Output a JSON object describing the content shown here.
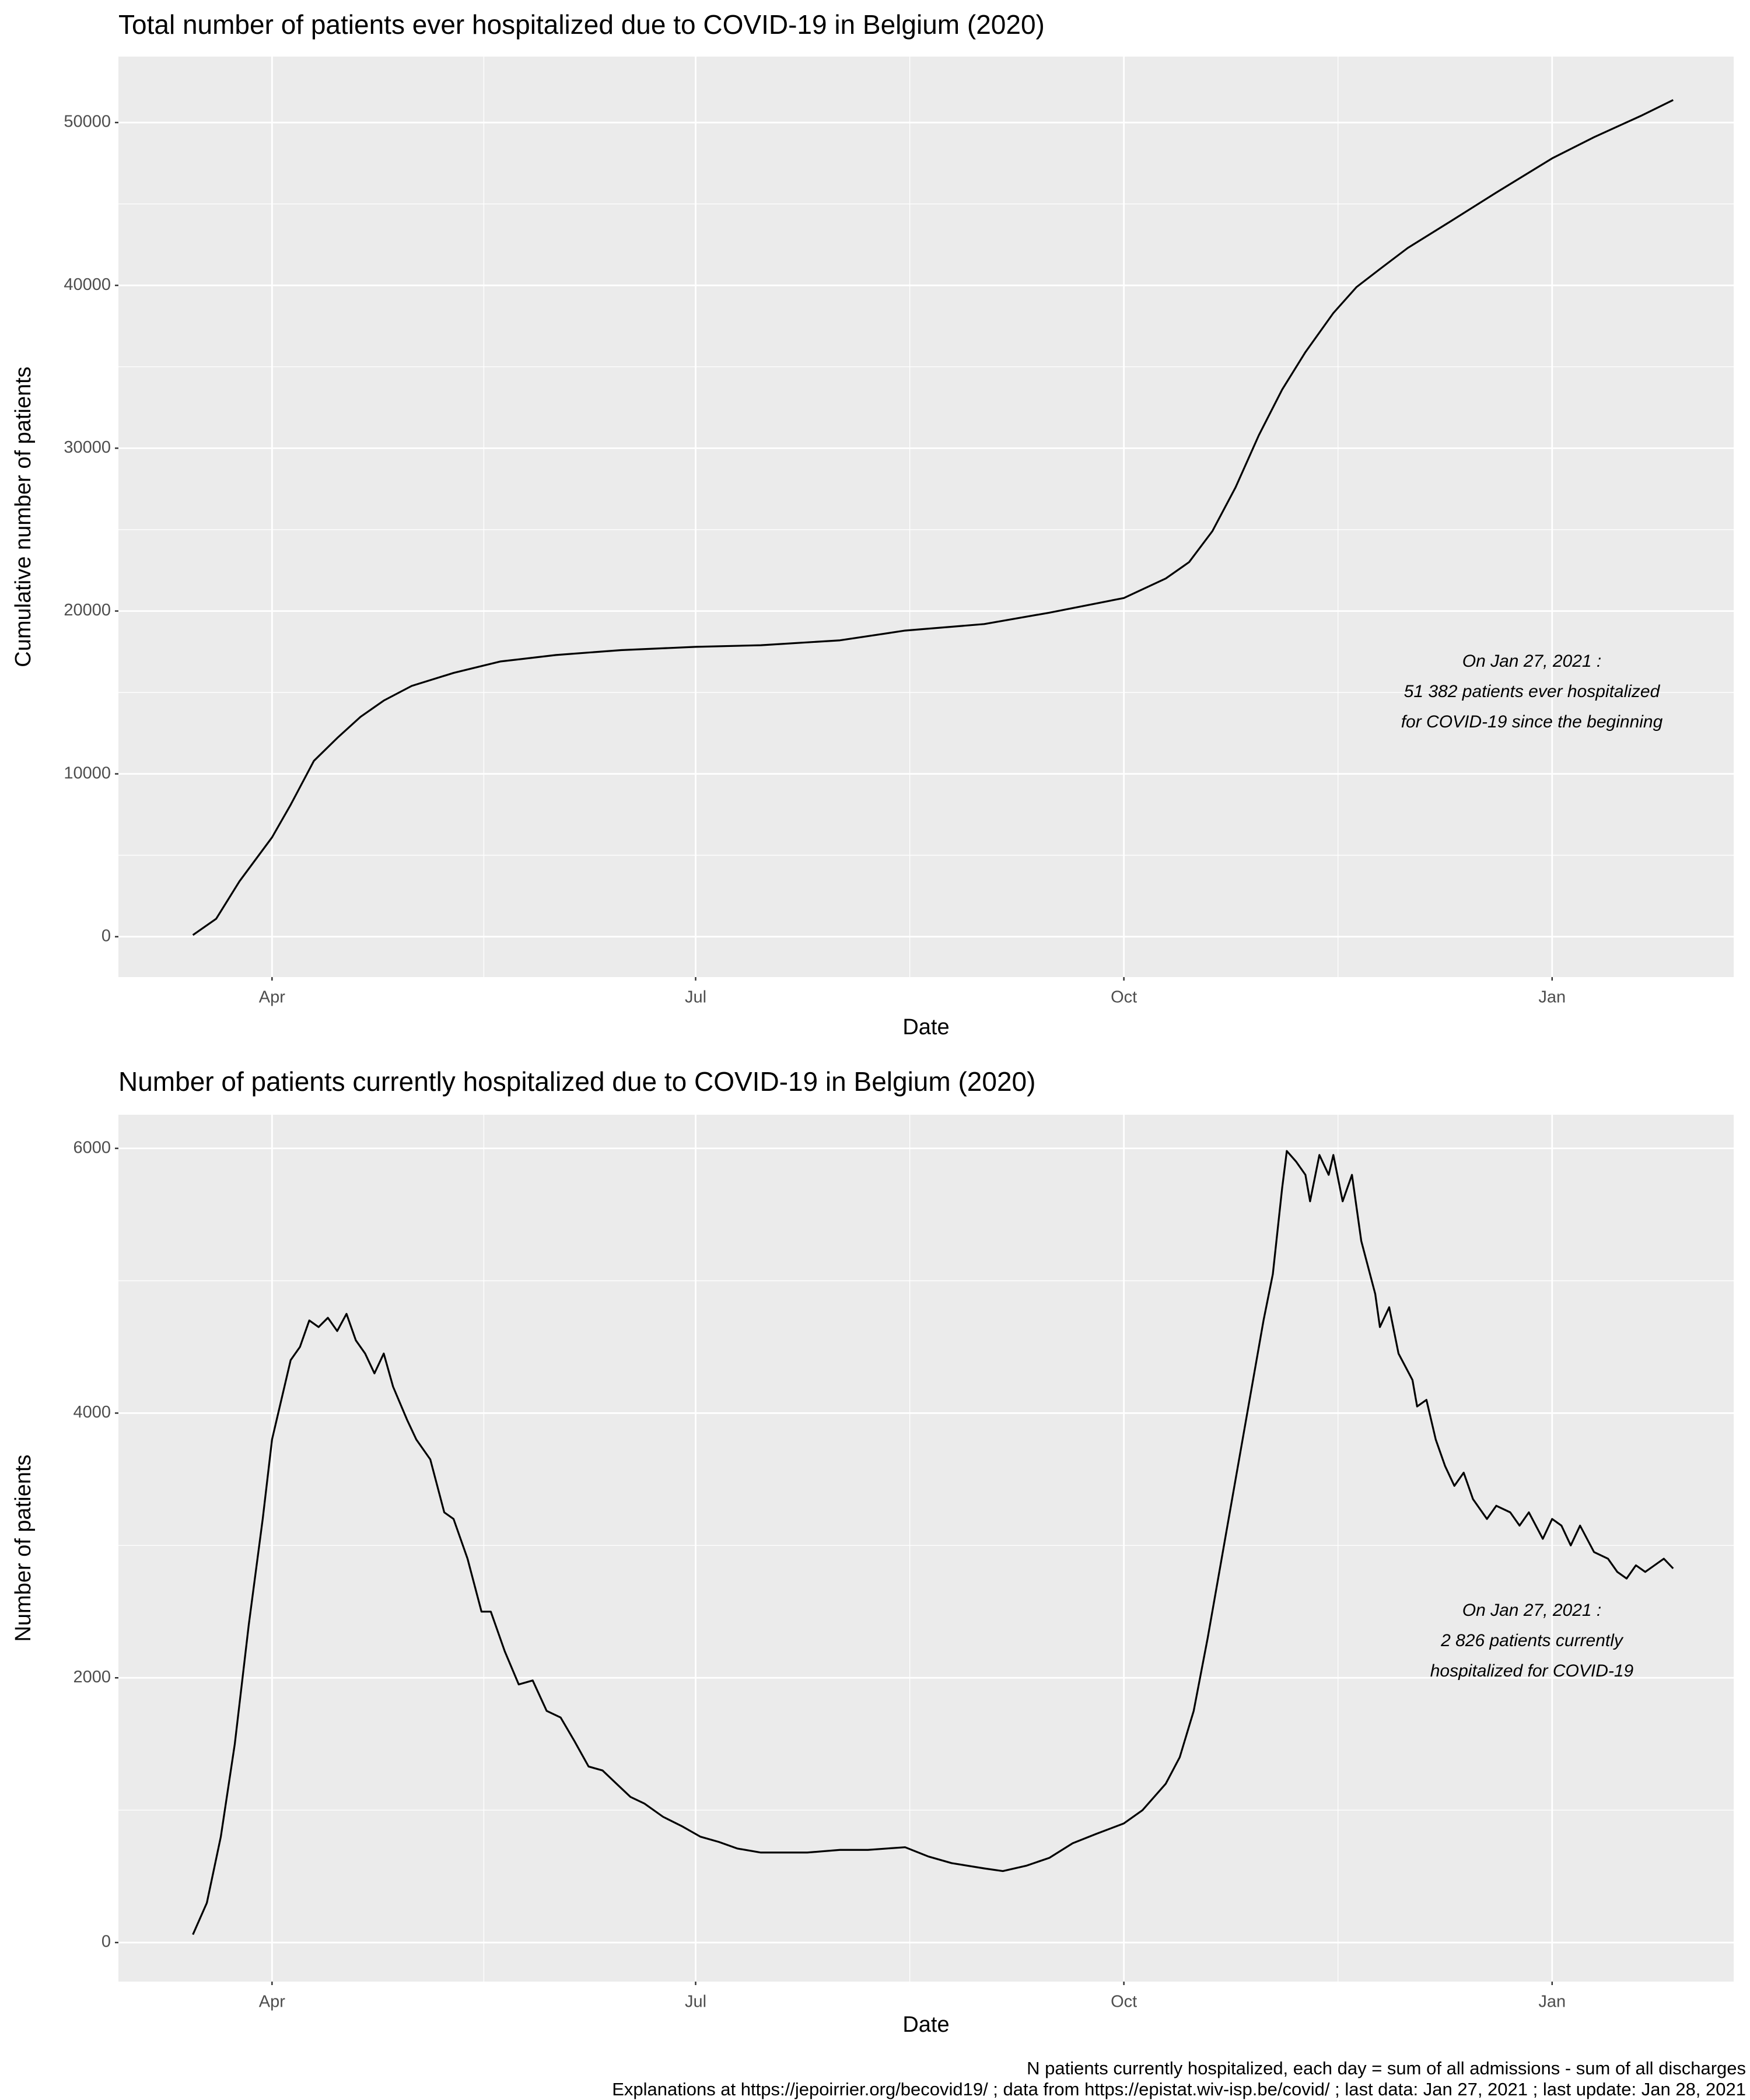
{
  "chart_data": [
    {
      "type": "line",
      "title": "Total number of patients ever hospitalized due to COVID-19 in Belgium (2020)",
      "x_label": "Date",
      "y_label": "Cumulative number of patients",
      "x": [
        "2020-03-15",
        "2020-03-20",
        "2020-03-25",
        "2020-04-01",
        "2020-04-05",
        "2020-04-10",
        "2020-04-15",
        "2020-04-20",
        "2020-04-25",
        "2020-05-01",
        "2020-05-10",
        "2020-05-20",
        "2020-06-01",
        "2020-06-15",
        "2020-07-01",
        "2020-07-15",
        "2020-08-01",
        "2020-08-15",
        "2020-09-01",
        "2020-09-15",
        "2020-10-01",
        "2020-10-10",
        "2020-10-15",
        "2020-10-20",
        "2020-10-25",
        "2020-10-30",
        "2020-11-04",
        "2020-11-09",
        "2020-11-15",
        "2020-11-20",
        "2020-11-25",
        "2020-12-01",
        "2020-12-10",
        "2020-12-20",
        "2021-01-01",
        "2021-01-10",
        "2021-01-20",
        "2021-01-27"
      ],
      "values": [
        100,
        1100,
        3400,
        6100,
        8100,
        10800,
        12200,
        13500,
        14500,
        15400,
        16200,
        16900,
        17300,
        17600,
        17800,
        17900,
        18200,
        18800,
        19200,
        19900,
        20800,
        22000,
        23000,
        24900,
        27600,
        30800,
        33600,
        35900,
        38300,
        39900,
        41000,
        42300,
        43900,
        45700,
        47800,
        49100,
        50400,
        51382
      ],
      "color": "#000000",
      "xlim": [
        "2020-02-28",
        "2021-02-09"
      ],
      "xticks": [
        {
          "value": "2020-04-01",
          "label": "Apr"
        },
        {
          "value": "2020-07-01",
          "label": "Jul"
        },
        {
          "value": "2020-10-01",
          "label": "Oct"
        },
        {
          "value": "2021-01-01",
          "label": "Jan"
        }
      ],
      "ylim": [
        -2480,
        54050
      ],
      "yticks": [
        0,
        10000,
        20000,
        30000,
        40000,
        50000
      ],
      "grid": true,
      "annotation": [
        "On Jan 27, 2021 :",
        "51 382 patients ever hospitalized",
        "for COVID-19 since the beginning"
      ]
    },
    {
      "type": "line",
      "title": "Number of patients currently hospitalized due to COVID-19 in Belgium (2020)",
      "x_label": "Date",
      "y_label": "Number of patients",
      "x": [
        "2020-03-15",
        "2020-03-18",
        "2020-03-21",
        "2020-03-24",
        "2020-03-27",
        "2020-03-30",
        "2020-04-01",
        "2020-04-03",
        "2020-04-05",
        "2020-04-07",
        "2020-04-09",
        "2020-04-11",
        "2020-04-13",
        "2020-04-15",
        "2020-04-17",
        "2020-04-19",
        "2020-04-21",
        "2020-04-23",
        "2020-04-25",
        "2020-04-27",
        "2020-04-30",
        "2020-05-02",
        "2020-05-05",
        "2020-05-08",
        "2020-05-10",
        "2020-05-13",
        "2020-05-16",
        "2020-05-18",
        "2020-05-21",
        "2020-05-24",
        "2020-05-27",
        "2020-05-30",
        "2020-06-02",
        "2020-06-05",
        "2020-06-08",
        "2020-06-11",
        "2020-06-14",
        "2020-06-17",
        "2020-06-20",
        "2020-06-24",
        "2020-06-28",
        "2020-07-02",
        "2020-07-06",
        "2020-07-10",
        "2020-07-15",
        "2020-07-20",
        "2020-07-25",
        "2020-08-01",
        "2020-08-07",
        "2020-08-15",
        "2020-08-20",
        "2020-08-25",
        "2020-09-01",
        "2020-09-05",
        "2020-09-10",
        "2020-09-15",
        "2020-09-20",
        "2020-09-25",
        "2020-10-01",
        "2020-10-05",
        "2020-10-10",
        "2020-10-13",
        "2020-10-16",
        "2020-10-19",
        "2020-10-22",
        "2020-10-25",
        "2020-10-28",
        "2020-10-31",
        "2020-11-02",
        "2020-11-04",
        "2020-11-05",
        "2020-11-07",
        "2020-11-09",
        "2020-11-10",
        "2020-11-12",
        "2020-11-14",
        "2020-11-15",
        "2020-11-17",
        "2020-11-19",
        "2020-11-21",
        "2020-11-24",
        "2020-11-25",
        "2020-11-27",
        "2020-11-29",
        "2020-12-02",
        "2020-12-03",
        "2020-12-05",
        "2020-12-07",
        "2020-12-09",
        "2020-12-11",
        "2020-12-13",
        "2020-12-15",
        "2020-12-18",
        "2020-12-20",
        "2020-12-23",
        "2020-12-25",
        "2020-12-27",
        "2020-12-30",
        "2021-01-01",
        "2021-01-03",
        "2021-01-05",
        "2021-01-07",
        "2021-01-10",
        "2021-01-13",
        "2021-01-15",
        "2021-01-17",
        "2021-01-19",
        "2021-01-21",
        "2021-01-23",
        "2021-01-25",
        "2021-01-27"
      ],
      "values": [
        60,
        300,
        800,
        1500,
        2400,
        3200,
        3800,
        4100,
        4400,
        4500,
        4700,
        4650,
        4720,
        4620,
        4750,
        4550,
        4450,
        4300,
        4450,
        4200,
        3950,
        3800,
        3650,
        3250,
        3200,
        2900,
        2500,
        2500,
        2200,
        1950,
        1980,
        1750,
        1700,
        1520,
        1330,
        1300,
        1200,
        1100,
        1050,
        950,
        880,
        800,
        760,
        710,
        680,
        680,
        680,
        700,
        700,
        720,
        650,
        600,
        560,
        540,
        580,
        640,
        750,
        820,
        900,
        1000,
        1200,
        1400,
        1750,
        2300,
        2900,
        3500,
        4100,
        4700,
        5050,
        5700,
        5980,
        5900,
        5800,
        5600,
        5950,
        5800,
        5950,
        5600,
        5800,
        5300,
        4900,
        4650,
        4800,
        4450,
        4250,
        4050,
        4100,
        3800,
        3600,
        3450,
        3550,
        3350,
        3200,
        3300,
        3250,
        3150,
        3250,
        3050,
        3200,
        3150,
        3000,
        3150,
        2950,
        2900,
        2800,
        2750,
        2850,
        2800,
        2850,
        2900,
        2826
      ],
      "color": "#000000",
      "xlim": [
        "2020-02-28",
        "2021-02-09"
      ],
      "xticks": [
        {
          "value": "2020-04-01",
          "label": "Apr"
        },
        {
          "value": "2020-07-01",
          "label": "Jul"
        },
        {
          "value": "2020-10-01",
          "label": "Oct"
        },
        {
          "value": "2021-01-01",
          "label": "Jan"
        }
      ],
      "ylim": [
        -295,
        6254
      ],
      "yticks": [
        0,
        2000,
        4000,
        6000
      ],
      "grid": true,
      "annotation": [
        "On Jan 27, 2021 :",
        "2 826 patients currently",
        "hospitalized for COVID-19"
      ]
    }
  ],
  "caption": [
    "N patients currently hospitalized, each day = sum of all admissions - sum of all discharges",
    "Explanations at https://jepoirrier.org/becovid19/ ; data from https://epistat.wiv-isp.be/covid/ ; last data: Jan 27, 2021  ; last update: Jan 28, 2021"
  ]
}
